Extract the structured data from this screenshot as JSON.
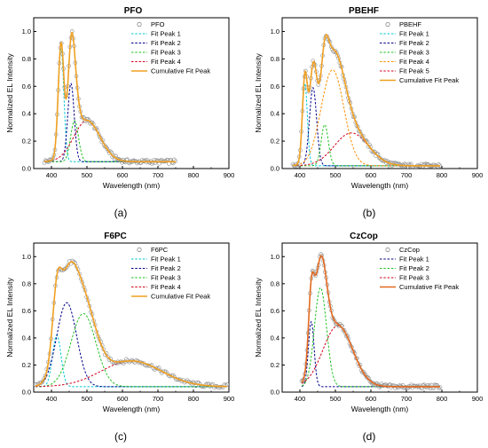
{
  "panel_labels": [
    "(a)",
    "(b)",
    "(c)",
    "(d)"
  ],
  "colors": {
    "data_marker": "#8c8c8c",
    "axis": "#000000",
    "cumulative": "#f0a020",
    "cumulative_d": "#e2691e"
  },
  "chart_data": [
    {
      "type": "line",
      "title": "PFO",
      "xlabel": "Wavelength (nm)",
      "ylabel": "Normalized EL Intensity",
      "xlim": [
        350,
        900
      ],
      "ylim": [
        0,
        1.1
      ],
      "xticks": [
        400,
        500,
        600,
        700,
        800,
        900
      ],
      "yticks": [
        0.0,
        0.2,
        0.4,
        0.6,
        0.8,
        1.0
      ],
      "legend_position": "top-right",
      "scatter": {
        "name": "PFO",
        "range": [
          380,
          750
        ],
        "step": 3
      },
      "baseline": 0.05,
      "series": [
        {
          "name": "Fit Peak 1",
          "color": "#00c8d2",
          "center": 427,
          "width": 8,
          "amp": 0.82
        },
        {
          "name": "Fit Peak 2",
          "color": "#00008b",
          "center": 455,
          "width": 9,
          "amp": 0.57
        },
        {
          "name": "Fit Peak 3",
          "color": "#1fc21f",
          "center": 465,
          "width": 11,
          "amp": 0.3
        },
        {
          "name": "Fit Peak 4",
          "color": "#d0021b",
          "center": 500,
          "width": 37,
          "amp": 0.3
        }
      ],
      "cumulative": {
        "name": "Cumulative Fit Peak",
        "color": "#f0a020",
        "range": [
          380,
          750
        ]
      }
    },
    {
      "type": "line",
      "title": "PBEHF",
      "xlabel": "Wavelength (nm)",
      "ylabel": "Normalized EL Intensity",
      "xlim": [
        350,
        900
      ],
      "ylim": [
        0,
        1.1
      ],
      "xticks": [
        400,
        500,
        600,
        700,
        800,
        900
      ],
      "yticks": [
        0.0,
        0.2,
        0.4,
        0.6,
        0.8,
        1.0
      ],
      "legend_position": "top-right",
      "scatter": {
        "name": "PBEHF",
        "range": [
          380,
          795
        ],
        "step": 3
      },
      "baseline": 0.02,
      "series": [
        {
          "name": "Fit Peak 1",
          "color": "#00c8d2",
          "center": 414,
          "width": 7,
          "amp": 0.6
        },
        {
          "name": "Fit Peak 2",
          "color": "#00008b",
          "center": 437,
          "width": 10,
          "amp": 0.57
        },
        {
          "name": "Fit Peak 3",
          "color": "#1fc21f",
          "center": 470,
          "width": 10,
          "amp": 0.3
        },
        {
          "name": "Fit Peak 4",
          "color": "#ff8c00",
          "center": 492,
          "width": 32,
          "amp": 0.7
        },
        {
          "name": "Fit Peak 5",
          "color": "#d0021b",
          "center": 545,
          "width": 48,
          "amp": 0.24
        }
      ],
      "cumulative": {
        "name": "Cumulative Fit Peak",
        "color": "#f0a020",
        "range": [
          380,
          795
        ]
      }
    },
    {
      "type": "line",
      "title": "F6PC",
      "xlabel": "Wavelength (nm)",
      "ylabel": "Normalized EL Intensity",
      "xlim": [
        350,
        900
      ],
      "ylim": [
        0,
        1.1
      ],
      "xticks": [
        400,
        500,
        600,
        700,
        800,
        900
      ],
      "yticks": [
        0.0,
        0.2,
        0.4,
        0.6,
        0.8,
        1.0
      ],
      "legend_position": "top-right",
      "scatter": {
        "name": "F6PC",
        "range": [
          355,
          895
        ],
        "step": 4
      },
      "baseline": 0.04,
      "series": [
        {
          "name": "Fit Peak 1",
          "color": "#00c8d2",
          "center": 415,
          "width": 12,
          "amp": 0.38
        },
        {
          "name": "Fit Peak 2",
          "color": "#00008b",
          "center": 443,
          "width": 28,
          "amp": 0.62
        },
        {
          "name": "Fit Peak 3",
          "color": "#1fc21f",
          "center": 490,
          "width": 35,
          "amp": 0.54
        },
        {
          "name": "Fit Peak 4",
          "color": "#d0021b",
          "center": 625,
          "width": 85,
          "amp": 0.19
        }
      ],
      "cumulative": {
        "name": "Cumulative Fit Peak",
        "color": "#f0a020",
        "range": [
          355,
          895
        ]
      }
    },
    {
      "type": "line",
      "title": "CzCop",
      "xlabel": "Wavelength (nm)",
      "ylabel": "Normalized EL Intensity",
      "xlim": [
        350,
        900
      ],
      "ylim": [
        0,
        1.1
      ],
      "xticks": [
        400,
        500,
        600,
        700,
        800,
        900
      ],
      "yticks": [
        0.0,
        0.2,
        0.4,
        0.6,
        0.8,
        1.0
      ],
      "legend_position": "top-right",
      "scatter": {
        "name": "CzCop",
        "range": [
          405,
          795
        ],
        "step": 3
      },
      "baseline": 0.04,
      "series": [
        {
          "name": "Fit Peak 1",
          "color": "#00008b",
          "center": 432,
          "width": 8,
          "amp": 0.48
        },
        {
          "name": "Fit Peak 2",
          "color": "#1fc21f",
          "center": 458,
          "width": 17,
          "amp": 0.73
        },
        {
          "name": "Fit Peak 3",
          "color": "#d0021b",
          "center": 507,
          "width": 42,
          "amp": 0.45
        }
      ],
      "cumulative": {
        "name": "Cumulative Fit Peak",
        "color": "#e2691e",
        "range": [
          405,
          795
        ]
      }
    }
  ]
}
